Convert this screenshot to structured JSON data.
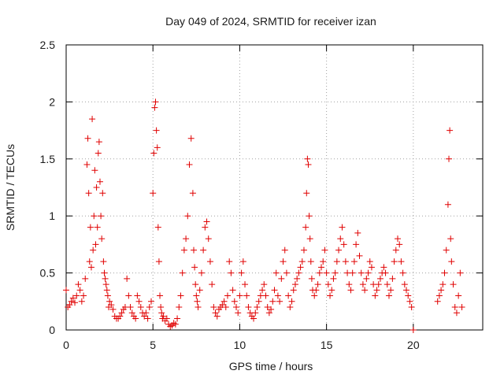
{
  "chart_data": {
    "type": "scatter",
    "title": "Day 049 of 2024, SRMTID for receiver izan",
    "xlabel": "GPS time / hours",
    "ylabel": "SRMTID / TECUs",
    "xlim": [
      0,
      24
    ],
    "ylim": [
      0,
      2.5
    ],
    "xticks": [
      0,
      5,
      10,
      15,
      20
    ],
    "xtick_labels": [
      "0",
      "5",
      "10",
      "15",
      "20"
    ],
    "yticks": [
      0,
      0.5,
      1,
      1.5,
      2,
      2.5
    ],
    "ytick_labels": [
      "0",
      "0.5",
      "1",
      "1.5",
      "2",
      "2.5"
    ],
    "grid": true,
    "marker": "+",
    "marker_color": "#e00000",
    "series": [
      {
        "name": "SRMTID",
        "x": [
          0.0,
          0.1,
          0.2,
          0.3,
          0.4,
          0.5,
          0.6,
          0.7,
          0.8,
          0.9,
          1.0,
          1.1,
          1.2,
          1.25,
          1.3,
          1.35,
          1.4,
          1.45,
          1.5,
          1.55,
          1.6,
          1.65,
          1.7,
          1.75,
          1.8,
          1.85,
          1.9,
          1.95,
          2.0,
          2.05,
          2.1,
          2.15,
          2.2,
          2.25,
          2.3,
          2.35,
          2.4,
          2.45,
          2.5,
          2.6,
          2.7,
          2.8,
          2.9,
          3.0,
          3.1,
          3.2,
          3.3,
          3.4,
          3.5,
          3.6,
          3.7,
          3.8,
          3.9,
          4.0,
          4.1,
          4.2,
          4.3,
          4.4,
          4.5,
          4.6,
          4.7,
          4.8,
          4.9,
          5.0,
          5.05,
          5.1,
          5.15,
          5.2,
          5.25,
          5.3,
          5.35,
          5.4,
          5.45,
          5.5,
          5.55,
          5.6,
          5.7,
          5.8,
          5.9,
          6.0,
          6.1,
          6.2,
          6.3,
          6.4,
          6.5,
          6.6,
          6.7,
          6.8,
          6.9,
          7.0,
          7.1,
          7.2,
          7.3,
          7.35,
          7.4,
          7.45,
          7.5,
          7.55,
          7.6,
          7.7,
          7.8,
          7.9,
          8.0,
          8.1,
          8.2,
          8.3,
          8.4,
          8.5,
          8.6,
          8.7,
          8.8,
          8.9,
          9.0,
          9.1,
          9.2,
          9.3,
          9.4,
          9.5,
          9.6,
          9.7,
          9.8,
          9.9,
          10.0,
          10.1,
          10.2,
          10.3,
          10.4,
          10.5,
          10.6,
          10.7,
          10.8,
          10.9,
          11.0,
          11.1,
          11.2,
          11.3,
          11.4,
          11.5,
          11.6,
          11.7,
          11.8,
          11.9,
          12.0,
          12.1,
          12.2,
          12.3,
          12.4,
          12.5,
          12.6,
          12.7,
          12.8,
          12.9,
          13.0,
          13.1,
          13.2,
          13.3,
          13.4,
          13.5,
          13.6,
          13.7,
          13.8,
          13.85,
          13.9,
          13.95,
          14.0,
          14.05,
          14.1,
          14.15,
          14.2,
          14.3,
          14.4,
          14.5,
          14.6,
          14.7,
          14.8,
          14.9,
          15.0,
          15.1,
          15.2,
          15.3,
          15.4,
          15.5,
          15.6,
          15.7,
          15.8,
          15.9,
          16.0,
          16.1,
          16.2,
          16.3,
          16.4,
          16.5,
          16.6,
          16.7,
          16.8,
          16.9,
          17.0,
          17.1,
          17.2,
          17.3,
          17.4,
          17.5,
          17.6,
          17.7,
          17.8,
          17.9,
          18.0,
          18.1,
          18.2,
          18.3,
          18.4,
          18.5,
          18.6,
          18.7,
          18.8,
          18.9,
          19.0,
          19.1,
          19.2,
          19.3,
          19.4,
          19.5,
          19.6,
          19.7,
          19.8,
          19.9,
          20.0,
          21.4,
          21.5,
          21.6,
          21.7,
          21.8,
          21.9,
          22.0,
          22.05,
          22.1,
          22.15,
          22.2,
          22.3,
          22.4,
          22.5,
          22.6,
          22.7,
          22.8
        ],
        "y": [
          0.35,
          0.2,
          0.22,
          0.25,
          0.28,
          0.24,
          0.3,
          0.4,
          0.35,
          0.25,
          0.3,
          0.45,
          1.45,
          1.68,
          1.2,
          0.6,
          0.9,
          0.55,
          1.85,
          0.7,
          1.0,
          1.4,
          0.75,
          1.25,
          0.9,
          1.55,
          1.65,
          1.3,
          1.0,
          0.8,
          1.2,
          0.6,
          0.5,
          0.45,
          0.4,
          0.35,
          0.3,
          0.2,
          0.25,
          0.22,
          0.18,
          0.12,
          0.1,
          0.1,
          0.12,
          0.15,
          0.18,
          0.2,
          0.45,
          0.3,
          0.2,
          0.15,
          0.12,
          0.1,
          0.3,
          0.25,
          0.2,
          0.15,
          0.12,
          0.15,
          0.1,
          0.2,
          0.25,
          1.2,
          1.55,
          1.95,
          2.0,
          1.75,
          1.6,
          0.9,
          0.6,
          0.3,
          0.2,
          0.15,
          0.1,
          0.12,
          0.08,
          0.1,
          0.05,
          0.03,
          0.04,
          0.06,
          0.05,
          0.1,
          0.2,
          0.3,
          0.5,
          0.7,
          0.8,
          1.0,
          1.45,
          1.68,
          1.2,
          0.7,
          0.55,
          0.4,
          0.3,
          0.25,
          0.2,
          0.35,
          0.5,
          0.7,
          0.9,
          0.95,
          0.8,
          0.6,
          0.4,
          0.2,
          0.15,
          0.12,
          0.18,
          0.2,
          0.22,
          0.25,
          0.2,
          0.3,
          0.6,
          0.5,
          0.35,
          0.25,
          0.2,
          0.15,
          0.3,
          0.5,
          0.6,
          0.4,
          0.3,
          0.2,
          0.15,
          0.12,
          0.1,
          0.15,
          0.2,
          0.25,
          0.3,
          0.35,
          0.4,
          0.3,
          0.2,
          0.15,
          0.18,
          0.25,
          0.35,
          0.5,
          0.3,
          0.25,
          0.45,
          0.6,
          0.7,
          0.5,
          0.3,
          0.2,
          0.25,
          0.35,
          0.4,
          0.45,
          0.5,
          0.55,
          0.6,
          0.7,
          0.9,
          1.2,
          1.5,
          1.45,
          1.0,
          0.8,
          0.6,
          0.45,
          0.35,
          0.3,
          0.35,
          0.4,
          0.5,
          0.55,
          0.6,
          0.7,
          0.5,
          0.4,
          0.3,
          0.35,
          0.45,
          0.5,
          0.6,
          0.7,
          0.8,
          0.9,
          0.75,
          0.6,
          0.5,
          0.4,
          0.35,
          0.5,
          0.6,
          0.75,
          0.85,
          0.65,
          0.5,
          0.4,
          0.35,
          0.45,
          0.5,
          0.6,
          0.55,
          0.4,
          0.3,
          0.35,
          0.4,
          0.45,
          0.5,
          0.55,
          0.5,
          0.4,
          0.3,
          0.35,
          0.45,
          0.6,
          0.7,
          0.8,
          0.75,
          0.6,
          0.5,
          0.4,
          0.35,
          0.3,
          0.25,
          0.2,
          0.0,
          0.25,
          0.3,
          0.35,
          0.4,
          0.5,
          0.7,
          1.1,
          1.5,
          1.75,
          0.8,
          0.6,
          0.4,
          0.2,
          0.15,
          0.3,
          0.5,
          0.2
        ]
      }
    ]
  }
}
